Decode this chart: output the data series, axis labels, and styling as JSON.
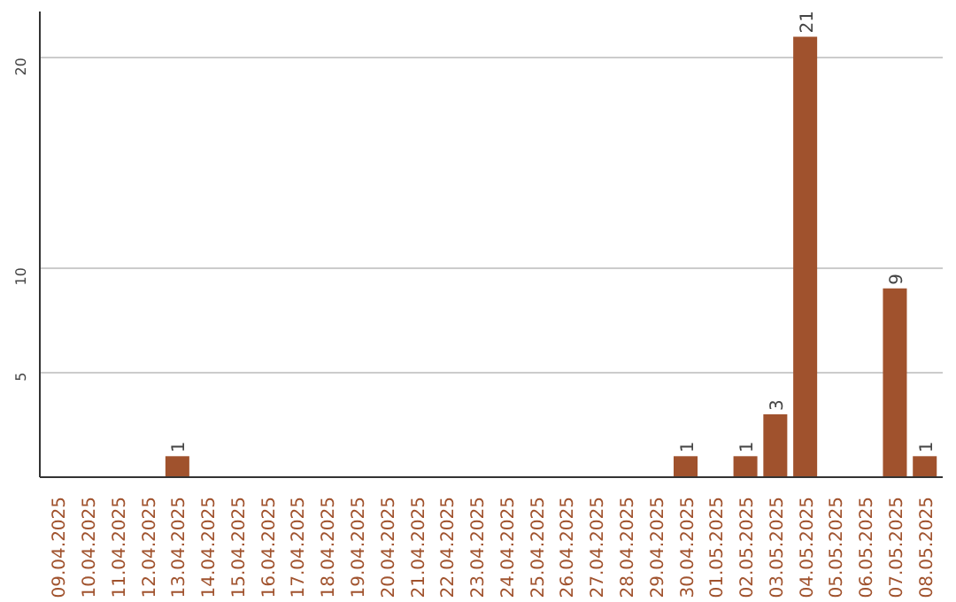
{
  "chart_data": {
    "type": "bar",
    "categories": [
      "09.04.2025",
      "10.04.2025",
      "11.04.2025",
      "12.04.2025",
      "13.04.2025",
      "14.04.2025",
      "15.04.2025",
      "16.04.2025",
      "17.04.2025",
      "18.04.2025",
      "19.04.2025",
      "20.04.2025",
      "21.04.2025",
      "22.04.2025",
      "23.04.2025",
      "24.04.2025",
      "25.04.2025",
      "26.04.2025",
      "27.04.2025",
      "28.04.2025",
      "29.04.2025",
      "30.04.2025",
      "01.05.2025",
      "02.05.2025",
      "03.05.2025",
      "04.05.2025",
      "05.05.2025",
      "06.05.2025",
      "07.05.2025",
      "08.05.2025"
    ],
    "values": [
      0,
      0,
      0,
      0,
      1,
      0,
      0,
      0,
      0,
      0,
      0,
      0,
      0,
      0,
      0,
      0,
      0,
      0,
      0,
      0,
      0,
      1,
      0,
      1,
      3,
      21,
      0,
      0,
      9,
      1
    ],
    "value_labels": [
      null,
      null,
      null,
      null,
      "1",
      null,
      null,
      null,
      null,
      null,
      null,
      null,
      null,
      null,
      null,
      null,
      null,
      null,
      null,
      null,
      null,
      "1",
      null,
      "1",
      "3",
      "21",
      null,
      null,
      "9",
      "1"
    ],
    "color": "#a0522d",
    "ylim": [
      0,
      22.2
    ],
    "yticks": [
      5,
      10,
      20
    ],
    "grid": "y"
  }
}
